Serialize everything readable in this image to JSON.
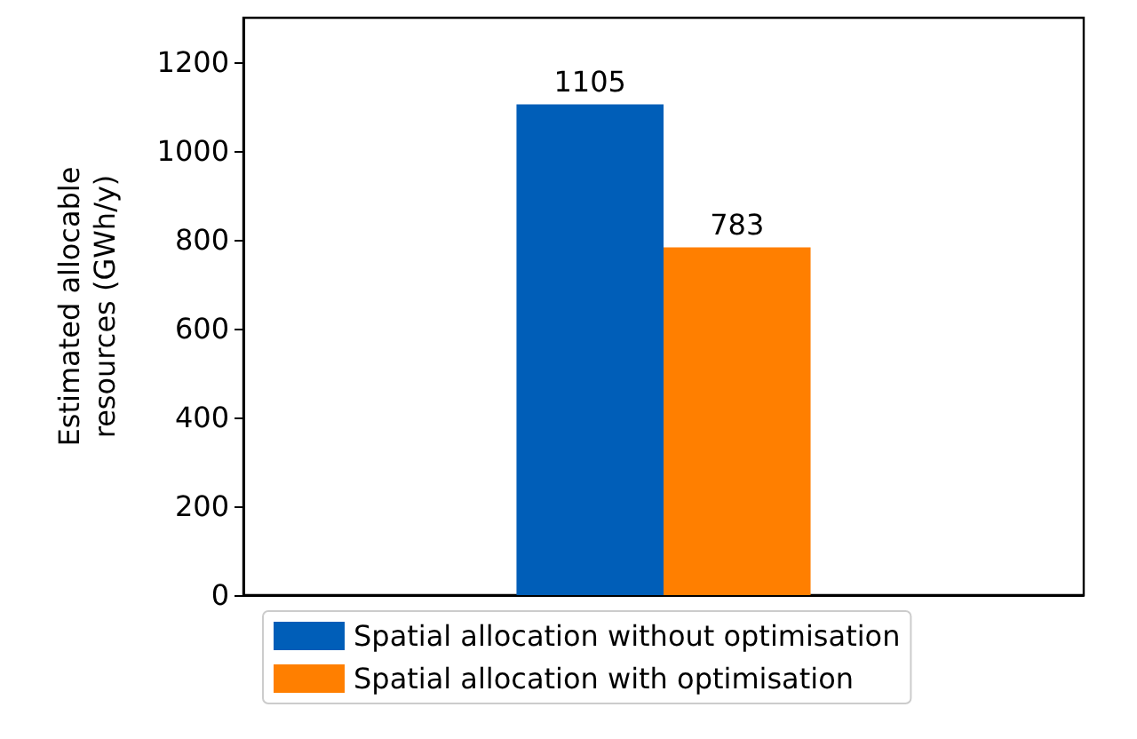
{
  "chart_data": {
    "type": "bar",
    "categories": [
      null
    ],
    "ylabel": "Estimated allocable resources (GWh/y)",
    "ylim": [
      0,
      1300
    ],
    "yticks": [
      0,
      200,
      400,
      600,
      800,
      1000,
      1200
    ],
    "series": [
      {
        "name": "Spatial allocation without optimisation",
        "color": "#005eb8",
        "values": [
          1105
        ]
      },
      {
        "name": "Spatial allocation with optimisation",
        "color": "#ff7f00",
        "values": [
          783
        ]
      }
    ],
    "data_labels": true,
    "grid": false,
    "legend": "bottom"
  }
}
